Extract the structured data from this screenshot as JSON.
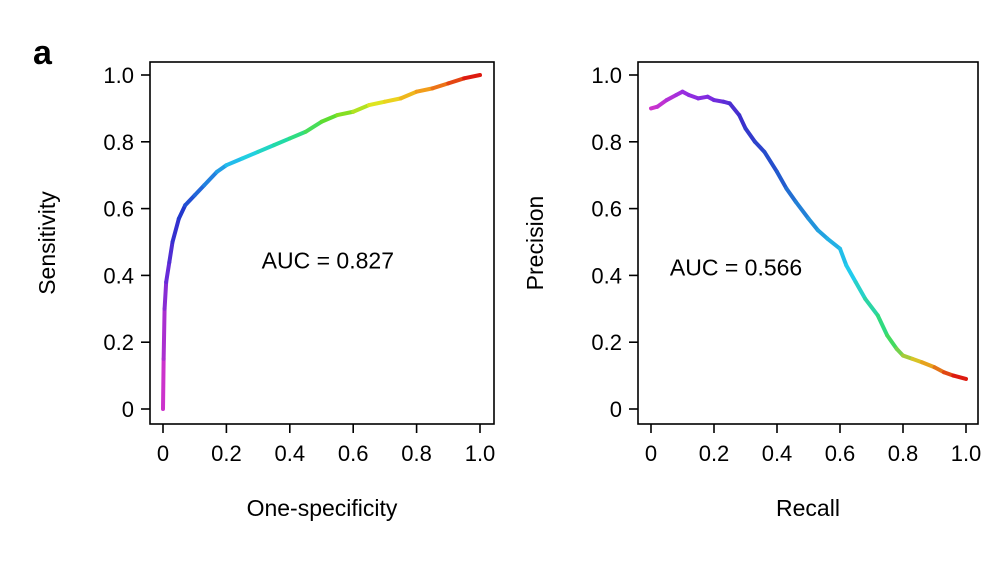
{
  "panel_letter": "a",
  "chart_data": [
    {
      "type": "line",
      "name": "roc",
      "xlabel": "One-specificity",
      "ylabel": "Sensitivity",
      "xlim": [
        0,
        1
      ],
      "ylim": [
        0,
        1
      ],
      "x_ticks": [
        0,
        0.2,
        0.4,
        0.6,
        0.8,
        1.0
      ],
      "x_tick_labels": [
        "0",
        "0.2",
        "0.4",
        "0.6",
        "0.8",
        "1.0"
      ],
      "y_ticks": [
        0,
        0.2,
        0.4,
        0.6,
        0.8,
        1.0
      ],
      "y_tick_labels": [
        "0",
        "0.2",
        "0.4",
        "0.6",
        "0.8",
        "1.0"
      ],
      "annotation": "AUC = 0.827",
      "annotation_at": [
        0.52,
        0.42
      ],
      "grid": false,
      "colormap": [
        "#cc33cc",
        "#6a2bd8",
        "#2233cc",
        "#2277dd",
        "#22ccee",
        "#22dd99",
        "#66dd22",
        "#e8e620",
        "#f29a1a",
        "#dd1a10"
      ],
      "x": [
        0,
        0.002,
        0.005,
        0.01,
        0.02,
        0.03,
        0.05,
        0.07,
        0.1,
        0.13,
        0.17,
        0.2,
        0.25,
        0.3,
        0.35,
        0.4,
        0.45,
        0.5,
        0.55,
        0.6,
        0.65,
        0.7,
        0.75,
        0.8,
        0.85,
        0.9,
        0.95,
        1.0
      ],
      "y": [
        0,
        0.15,
        0.3,
        0.38,
        0.44,
        0.5,
        0.57,
        0.61,
        0.64,
        0.67,
        0.71,
        0.73,
        0.75,
        0.77,
        0.79,
        0.81,
        0.83,
        0.86,
        0.88,
        0.89,
        0.91,
        0.92,
        0.93,
        0.95,
        0.96,
        0.975,
        0.99,
        1.0
      ]
    },
    {
      "type": "line",
      "name": "pr",
      "xlabel": "Recall",
      "ylabel": "Precision",
      "xlim": [
        0,
        1
      ],
      "ylim": [
        0,
        1
      ],
      "x_ticks": [
        0,
        0.2,
        0.4,
        0.6,
        0.8,
        1.0
      ],
      "x_tick_labels": [
        "0",
        "0.2",
        "0.4",
        "0.6",
        "0.8",
        "1.0"
      ],
      "y_ticks": [
        0,
        0.2,
        0.4,
        0.6,
        0.8,
        1.0
      ],
      "y_tick_labels": [
        "0",
        "0.2",
        "0.4",
        "0.6",
        "0.8",
        "1.0"
      ],
      "annotation": "AUC = 0.566",
      "annotation_at": [
        0.27,
        0.4
      ],
      "grid": false,
      "colormap": [
        "#cc33cc",
        "#9b2ee0",
        "#7a2be0",
        "#3a30cc",
        "#2255cc",
        "#2299dd",
        "#22ccee",
        "#33dd66",
        "#e8c020",
        "#dd1a10"
      ],
      "x": [
        0,
        0.02,
        0.05,
        0.08,
        0.1,
        0.12,
        0.15,
        0.18,
        0.2,
        0.23,
        0.25,
        0.28,
        0.3,
        0.33,
        0.36,
        0.4,
        0.43,
        0.46,
        0.5,
        0.53,
        0.56,
        0.6,
        0.62,
        0.65,
        0.68,
        0.72,
        0.75,
        0.78,
        0.8,
        0.83,
        0.86,
        0.9,
        0.93,
        0.96,
        1.0
      ],
      "y": [
        0.9,
        0.905,
        0.925,
        0.94,
        0.95,
        0.94,
        0.93,
        0.935,
        0.925,
        0.92,
        0.915,
        0.88,
        0.84,
        0.8,
        0.77,
        0.71,
        0.66,
        0.62,
        0.57,
        0.535,
        0.51,
        0.48,
        0.43,
        0.38,
        0.33,
        0.28,
        0.22,
        0.18,
        0.16,
        0.15,
        0.14,
        0.125,
        0.11,
        0.1,
        0.09
      ]
    }
  ]
}
